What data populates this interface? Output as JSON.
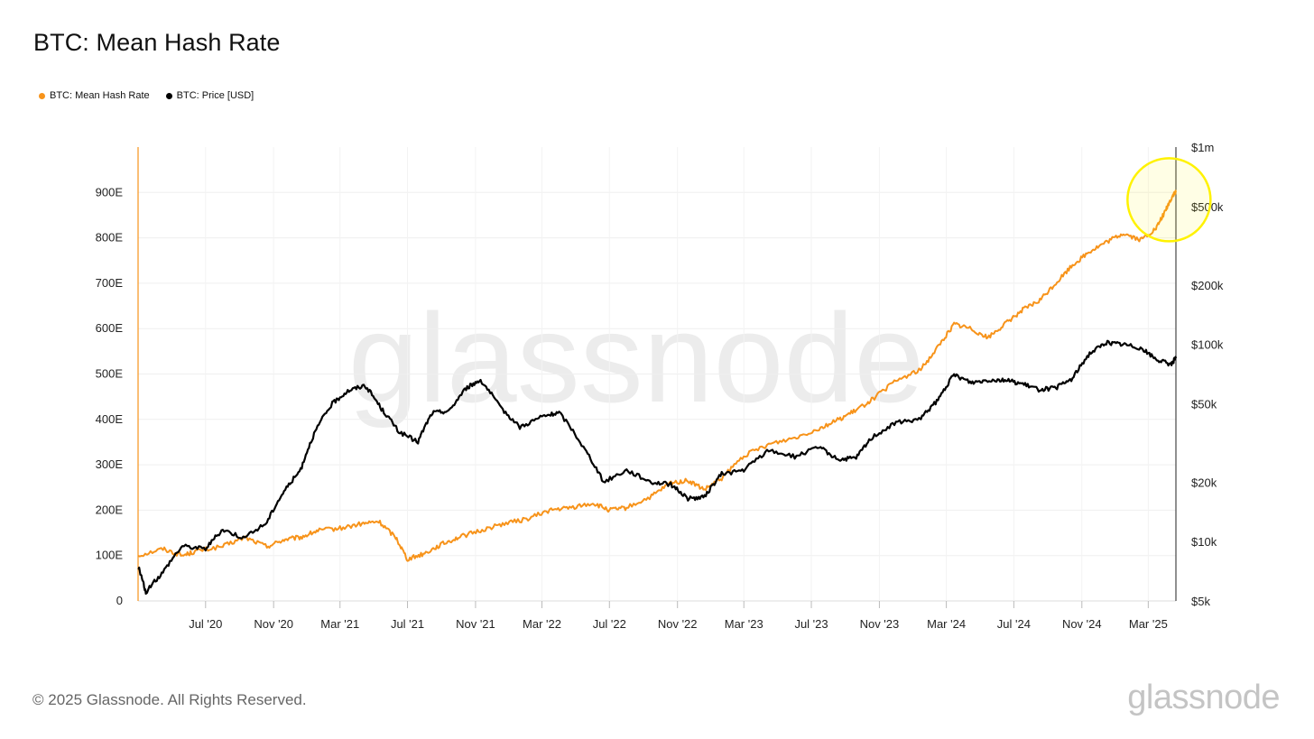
{
  "chart_data": {
    "type": "line",
    "title": "BTC: Mean Hash Rate",
    "legend_placement": "top-left",
    "watermark": "glassnode",
    "grid": true,
    "colors": {
      "hashrate": "#F7931A",
      "price": "#000000",
      "highlight": "#FFF200"
    },
    "x_range": [
      "2020-03-01",
      "2025-04-20"
    ],
    "x_ticks": [
      {
        "date": "2020-07-01",
        "label": "Jul '20"
      },
      {
        "date": "2020-11-01",
        "label": "Nov '20"
      },
      {
        "date": "2021-03-01",
        "label": "Mar '21"
      },
      {
        "date": "2021-07-01",
        "label": "Jul '21"
      },
      {
        "date": "2021-11-01",
        "label": "Nov '21"
      },
      {
        "date": "2022-03-01",
        "label": "Mar '22"
      },
      {
        "date": "2022-07-01",
        "label": "Jul '22"
      },
      {
        "date": "2022-11-01",
        "label": "Nov '22"
      },
      {
        "date": "2023-03-01",
        "label": "Mar '23"
      },
      {
        "date": "2023-07-01",
        "label": "Jul '23"
      },
      {
        "date": "2023-11-01",
        "label": "Nov '23"
      },
      {
        "date": "2024-03-01",
        "label": "Mar '24"
      },
      {
        "date": "2024-07-01",
        "label": "Jul '24"
      },
      {
        "date": "2024-11-01",
        "label": "Nov '24"
      },
      {
        "date": "2025-03-01",
        "label": "Mar '25"
      }
    ],
    "y_left": {
      "label": "",
      "min": 0,
      "max": 1000,
      "ticks": [
        {
          "value": 0,
          "label": "0"
        },
        {
          "value": 100,
          "label": "100E"
        },
        {
          "value": 200,
          "label": "200E"
        },
        {
          "value": 300,
          "label": "300E"
        },
        {
          "value": 400,
          "label": "400E"
        },
        {
          "value": 500,
          "label": "500E"
        },
        {
          "value": 600,
          "label": "600E"
        },
        {
          "value": 700,
          "label": "700E"
        },
        {
          "value": 800,
          "label": "800E"
        },
        {
          "value": 900,
          "label": "900E"
        }
      ]
    },
    "y_right": {
      "label": "",
      "scale": "log",
      "min": 5000,
      "max": 1000000,
      "ticks": [
        {
          "value": 5000,
          "label": "$5k"
        },
        {
          "value": 10000,
          "label": "$10k"
        },
        {
          "value": 20000,
          "label": "$20k"
        },
        {
          "value": 50000,
          "label": "$50k"
        },
        {
          "value": 100000,
          "label": "$100k"
        },
        {
          "value": 200000,
          "label": "$200k"
        },
        {
          "value": 500000,
          "label": "$500k"
        },
        {
          "value": 1000000,
          "label": "$1m"
        }
      ]
    },
    "series": [
      {
        "name": "BTC: Mean Hash Rate",
        "axis": "left",
        "color": "#F7931A",
        "points": [
          [
            "2020-03-01",
            100
          ],
          [
            "2020-04-15",
            115
          ],
          [
            "2020-05-20",
            100
          ],
          [
            "2020-06-15",
            110
          ],
          [
            "2020-08-01",
            120
          ],
          [
            "2020-09-10",
            140
          ],
          [
            "2020-10-20",
            120
          ],
          [
            "2020-11-20",
            135
          ],
          [
            "2020-12-20",
            140
          ],
          [
            "2021-01-20",
            155
          ],
          [
            "2021-03-01",
            160
          ],
          [
            "2021-04-10",
            170
          ],
          [
            "2021-05-10",
            175
          ],
          [
            "2021-06-10",
            140
          ],
          [
            "2021-07-01",
            92
          ],
          [
            "2021-08-01",
            105
          ],
          [
            "2021-09-01",
            125
          ],
          [
            "2021-10-01",
            140
          ],
          [
            "2021-11-10",
            155
          ],
          [
            "2021-12-20",
            170
          ],
          [
            "2022-02-01",
            180
          ],
          [
            "2022-03-15",
            200
          ],
          [
            "2022-04-20",
            205
          ],
          [
            "2022-06-01",
            215
          ],
          [
            "2022-07-01",
            200
          ],
          [
            "2022-08-01",
            205
          ],
          [
            "2022-09-15",
            230
          ],
          [
            "2022-10-20",
            260
          ],
          [
            "2022-11-20",
            265
          ],
          [
            "2022-12-20",
            245
          ],
          [
            "2023-01-20",
            270
          ],
          [
            "2023-03-01",
            320
          ],
          [
            "2023-04-15",
            345
          ],
          [
            "2023-06-01",
            360
          ],
          [
            "2023-07-15",
            380
          ],
          [
            "2023-08-20",
            400
          ],
          [
            "2023-09-20",
            420
          ],
          [
            "2023-10-20",
            445
          ],
          [
            "2023-12-01",
            485
          ],
          [
            "2024-01-15",
            510
          ],
          [
            "2024-02-15",
            560
          ],
          [
            "2024-03-15",
            610
          ],
          [
            "2024-04-15",
            600
          ],
          [
            "2024-05-15",
            580
          ],
          [
            "2024-06-15",
            610
          ],
          [
            "2024-07-15",
            640
          ],
          [
            "2024-08-15",
            660
          ],
          [
            "2024-09-15",
            700
          ],
          [
            "2024-10-15",
            740
          ],
          [
            "2024-11-15",
            770
          ],
          [
            "2024-12-15",
            790
          ],
          [
            "2025-01-15",
            810
          ],
          [
            "2025-02-15",
            795
          ],
          [
            "2025-03-15",
            820
          ],
          [
            "2025-04-01",
            860
          ],
          [
            "2025-04-15",
            895
          ],
          [
            "2025-04-20",
            900
          ]
        ]
      },
      {
        "name": "BTC: Price [USD]",
        "axis": "right",
        "color": "#000000",
        "points": [
          [
            "2020-03-01",
            7500
          ],
          [
            "2020-03-15",
            5500
          ],
          [
            "2020-04-15",
            7000
          ],
          [
            "2020-05-20",
            9500
          ],
          [
            "2020-07-01",
            9200
          ],
          [
            "2020-08-01",
            11500
          ],
          [
            "2020-09-10",
            10400
          ],
          [
            "2020-10-20",
            12500
          ],
          [
            "2020-11-20",
            18000
          ],
          [
            "2020-12-20",
            23000
          ],
          [
            "2021-01-15",
            36000
          ],
          [
            "2021-02-15",
            50000
          ],
          [
            "2021-03-15",
            58000
          ],
          [
            "2021-04-15",
            62000
          ],
          [
            "2021-05-15",
            47000
          ],
          [
            "2021-06-15",
            36000
          ],
          [
            "2021-07-20",
            32000
          ],
          [
            "2021-08-15",
            45000
          ],
          [
            "2021-09-15",
            46000
          ],
          [
            "2021-10-15",
            60000
          ],
          [
            "2021-11-10",
            66000
          ],
          [
            "2021-12-15",
            48000
          ],
          [
            "2022-01-20",
            38000
          ],
          [
            "2022-03-01",
            43000
          ],
          [
            "2022-04-01",
            45000
          ],
          [
            "2022-05-15",
            30000
          ],
          [
            "2022-06-20",
            20000
          ],
          [
            "2022-08-01",
            23000
          ],
          [
            "2022-09-15",
            20000
          ],
          [
            "2022-10-20",
            19500
          ],
          [
            "2022-11-20",
            16500
          ],
          [
            "2022-12-20",
            16800
          ],
          [
            "2023-01-20",
            22000
          ],
          [
            "2023-03-01",
            23000
          ],
          [
            "2023-04-15",
            29000
          ],
          [
            "2023-06-01",
            27000
          ],
          [
            "2023-07-15",
            30000
          ],
          [
            "2023-08-20",
            26000
          ],
          [
            "2023-09-20",
            26500
          ],
          [
            "2023-10-20",
            34000
          ],
          [
            "2023-12-01",
            40000
          ],
          [
            "2024-01-15",
            42000
          ],
          [
            "2024-02-15",
            52000
          ],
          [
            "2024-03-15",
            70000
          ],
          [
            "2024-04-15",
            64000
          ],
          [
            "2024-05-15",
            66000
          ],
          [
            "2024-06-15",
            66000
          ],
          [
            "2024-07-15",
            63000
          ],
          [
            "2024-08-15",
            59000
          ],
          [
            "2024-09-15",
            60000
          ],
          [
            "2024-10-15",
            67000
          ],
          [
            "2024-11-15",
            90000
          ],
          [
            "2024-12-15",
            102000
          ],
          [
            "2025-01-15",
            100000
          ],
          [
            "2025-02-15",
            96000
          ],
          [
            "2025-03-15",
            84000
          ],
          [
            "2025-04-10",
            79000
          ],
          [
            "2025-04-20",
            85000
          ]
        ]
      }
    ],
    "annotations": [
      {
        "type": "circle",
        "target": "latest hash rate peak",
        "color": "#FFF200"
      }
    ]
  },
  "footer": {
    "copyright": "© 2025 Glassnode. All Rights Reserved.",
    "brand": "glassnode"
  }
}
